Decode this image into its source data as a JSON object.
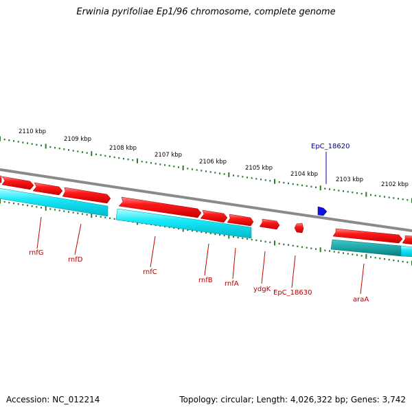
{
  "title": "Erwinia pyrifoliae Ep1/96 chromosome, complete genome",
  "footer": {
    "accession": "Accession: NC_012214",
    "summary": "Topology: circular; Length: 4,026,322 bp; Genes: 3,742"
  },
  "colors": {
    "backbone": "#8a8a8a",
    "forward_gene": "#e60000",
    "reverse_gene": "#00e0f0",
    "highlight_gene": "#1010e0",
    "teal_region": "#00a8a8",
    "tick": "#2a7a2a",
    "label_red": "#b00000",
    "label_blue": "#00009b"
  },
  "scale_labels": [
    "2110 kbp",
    "2109 kbp",
    "2108 kbp",
    "2107 kbp",
    "2106 kbp",
    "2105 kbp",
    "2104 kbp",
    "2103 kbp",
    "2102 kbp"
  ],
  "gene_labels": [
    "rnfG",
    "rnfD",
    "rnfC",
    "rnfB",
    "rnfA",
    "ydgK",
    "EpC_18630",
    "araA"
  ],
  "highlight_label": "EpC_18620"
}
